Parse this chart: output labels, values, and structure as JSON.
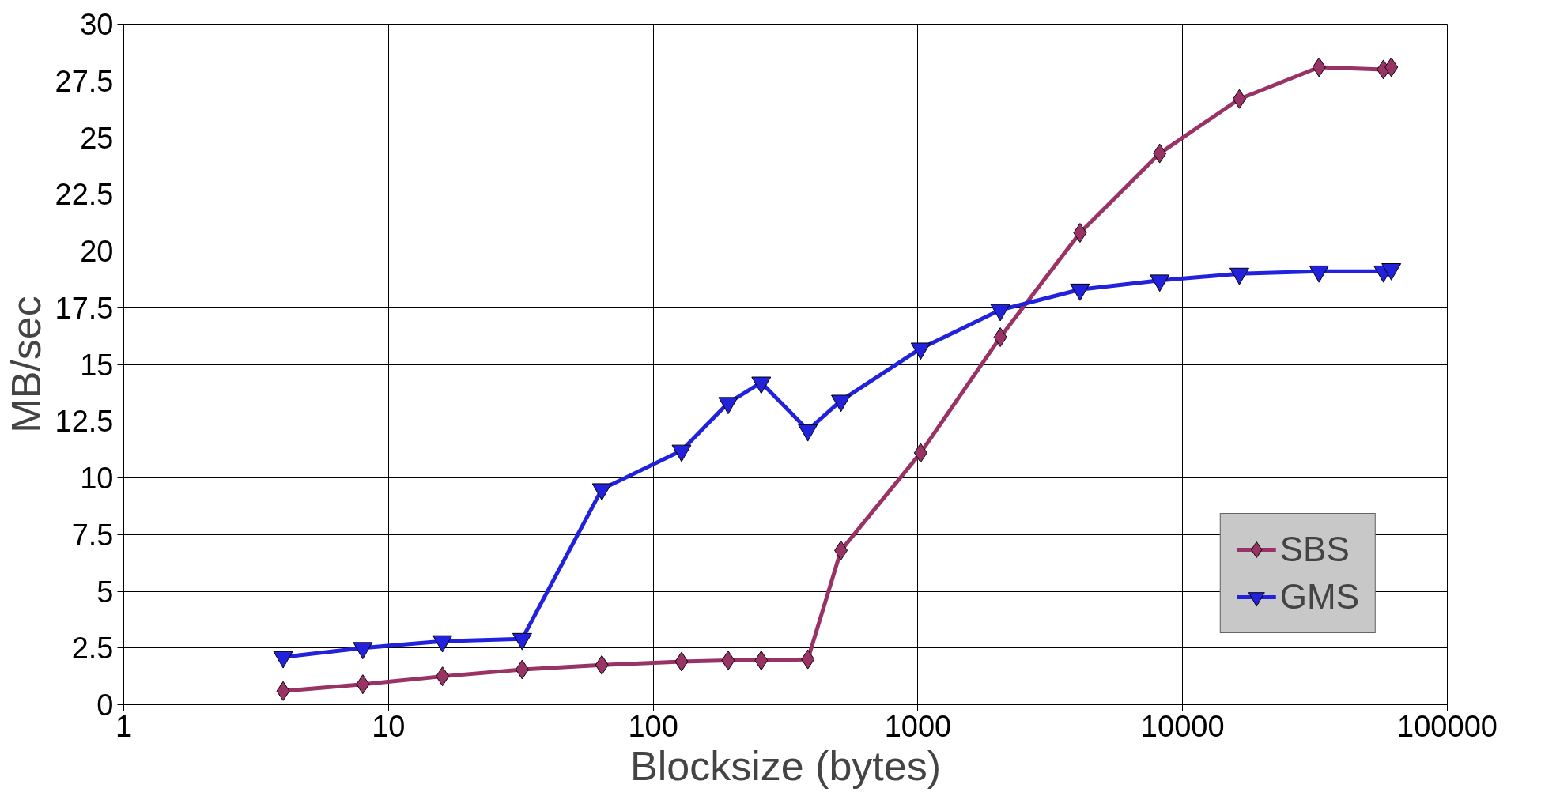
{
  "chart_data": {
    "type": "line",
    "xlabel": "Blocksize (bytes)",
    "ylabel": "MB/sec",
    "log": "x",
    "grid": true,
    "legend": "bottom right",
    "line_style": "solid",
    "x": [
      4,
      8,
      16,
      32,
      64,
      128,
      192,
      256,
      384,
      512,
      1024,
      2048,
      4096,
      8192,
      16384,
      32768,
      57344,
      61440
    ],
    "xlim": [
      1,
      100000
    ],
    "xticks": [
      1,
      10,
      100,
      1000,
      10000,
      100000
    ],
    "ylim": [
      0,
      30
    ],
    "yticks": [
      0,
      2.5,
      5,
      7.5,
      10,
      12.5,
      15,
      17.5,
      20,
      22.5,
      25,
      27.5,
      30
    ],
    "series": [
      {
        "name": "SBS",
        "color": "#993366",
        "marker": "diamond",
        "values": [
          0.6,
          0.9,
          1.25,
          1.55,
          1.75,
          1.9,
          1.95,
          1.95,
          2.0,
          6.8,
          11.1,
          16.2,
          20.8,
          24.3,
          26.7,
          28.1,
          28.0,
          28.1
        ]
      },
      {
        "name": "GMS",
        "color": "#2222dd",
        "marker": "triangle",
        "values": [
          2.1,
          2.5,
          2.8,
          2.9,
          9.5,
          11.2,
          13.3,
          14.2,
          12.1,
          13.4,
          15.7,
          17.4,
          18.3,
          18.7,
          19.0,
          19.1,
          19.1,
          19.2
        ]
      }
    ]
  }
}
